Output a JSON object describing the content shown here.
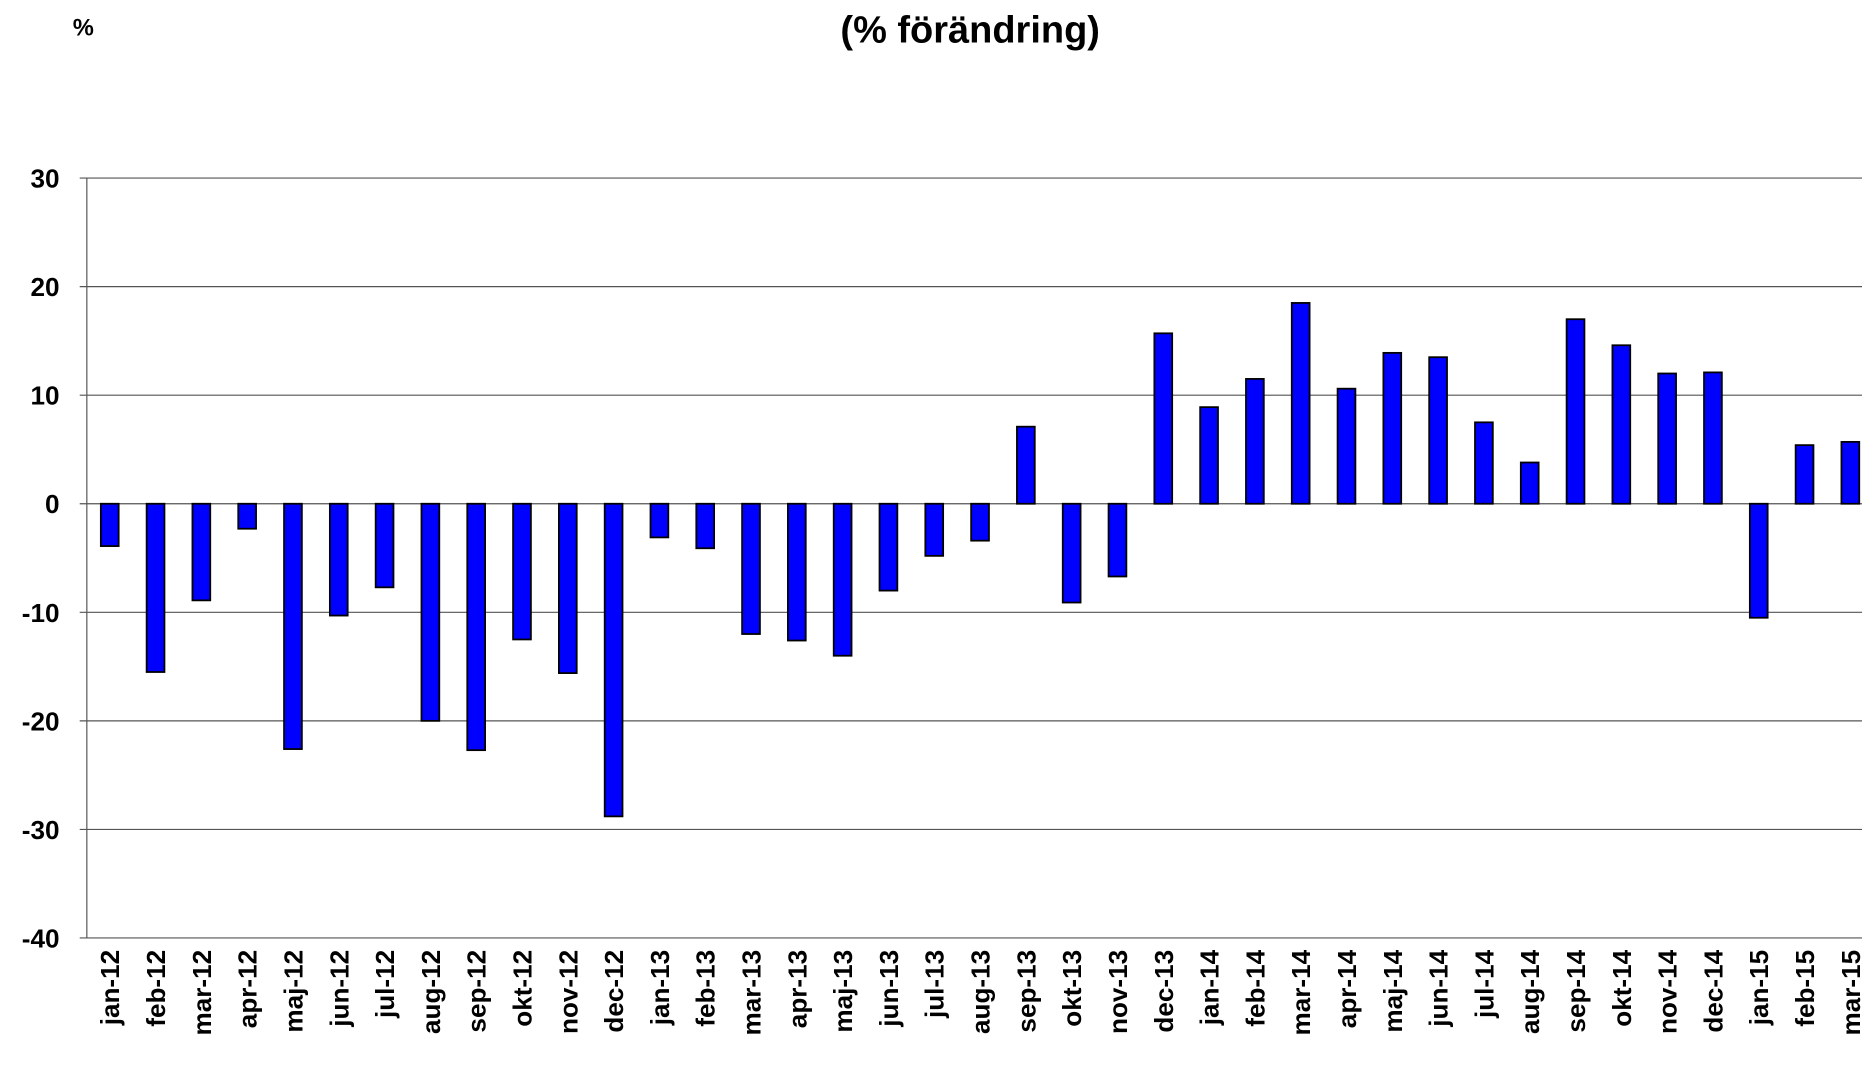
{
  "chart_data": {
    "type": "bar",
    "title": "(% förändring)",
    "y_unit": "%",
    "categories": [
      "jan-12",
      "feb-12",
      "mar-12",
      "apr-12",
      "maj-12",
      "jun-12",
      "jul-12",
      "aug-12",
      "sep-12",
      "okt-12",
      "nov-12",
      "dec-12",
      "jan-13",
      "feb-13",
      "mar-13",
      "apr-13",
      "maj-13",
      "jun-13",
      "jul-13",
      "aug-13",
      "sep-13",
      "okt-13",
      "nov-13",
      "dec-13",
      "jan-14",
      "feb-14",
      "mar-14",
      "apr-14",
      "maj-14",
      "jun-14",
      "jul-14",
      "aug-14",
      "sep-14",
      "okt-14",
      "nov-14",
      "dec-14",
      "jan-15",
      "feb-15",
      "mar-15"
    ],
    "values": [
      -3.9,
      -15.5,
      -8.9,
      -2.3,
      -22.6,
      -10.3,
      -7.7,
      -20.0,
      -22.7,
      -12.5,
      -15.6,
      -28.8,
      -3.1,
      -4.1,
      -12.0,
      -12.6,
      -14.0,
      -8.0,
      -4.8,
      -3.4,
      7.1,
      -9.1,
      -6.7,
      15.7,
      8.9,
      11.5,
      18.5,
      10.6,
      13.9,
      13.5,
      7.5,
      3.8,
      17.0,
      14.6,
      12.0,
      12.1,
      -10.5,
      5.4,
      5.7
    ],
    "color": "#0000ff",
    "ylim": [
      -40,
      30
    ],
    "yticks": [
      -40,
      -30,
      -20,
      -10,
      0,
      10,
      20,
      30
    ],
    "grid": true
  }
}
